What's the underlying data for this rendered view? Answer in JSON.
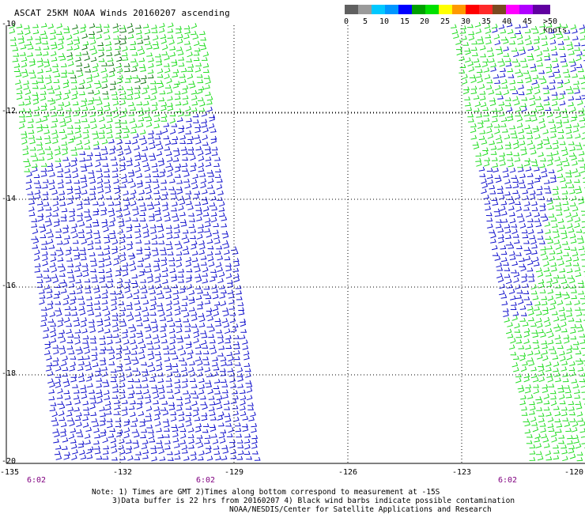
{
  "title": "ASCAT 25KM NOAA Winds 20160207 ascending",
  "legend": {
    "colors": [
      "#606060",
      "#9a9a9a",
      "#00c8ff",
      "#0096ff",
      "#0000ff",
      "#00a000",
      "#00e000",
      "#ffff00",
      "#ff9900",
      "#ff0000",
      "#ff2a2a",
      "#7a4a20",
      "#ff00ff",
      "#b000ff",
      "#6000a0"
    ],
    "labels": [
      "0",
      "5",
      "10",
      "15",
      "20",
      "25",
      "30",
      "35",
      "40",
      "45",
      ">50 knots"
    ]
  },
  "map": {
    "lat_labels": [
      "-10",
      "-12",
      "-14",
      "-16",
      "-18",
      "-20"
    ],
    "lon_labels": [
      "-135",
      "-132",
      "-129",
      "-126",
      "-123",
      "-120"
    ],
    "time_labels": [
      "6:02",
      "6:02",
      "6:02"
    ]
  },
  "notes": {
    "line1": "Note: 1) Times are GMT 2)Times along bottom correspond to measurement at -15S",
    "line2": "3)Data buffer is 22 hrs from 20160207 4) Black wind barbs indicate possible contamination",
    "line3": "NOAA/NESDIS/Center for Satellite Applications and Research"
  }
}
